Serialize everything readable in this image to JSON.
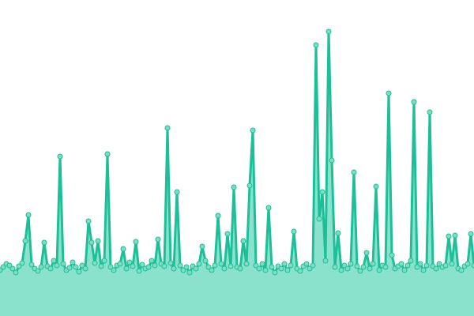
{
  "chart_data": {
    "type": "area",
    "values": [
      58,
      62,
      66,
      64,
      60,
      55,
      63,
      67,
      95,
      128,
      65,
      60,
      57,
      62,
      93,
      63,
      60,
      70,
      64,
      202,
      66,
      58,
      61,
      68,
      62,
      56,
      64,
      60,
      120,
      93,
      67,
      95,
      63,
      70,
      205,
      62,
      58,
      64,
      66,
      85,
      60,
      68,
      63,
      94,
      57,
      65,
      60,
      62,
      70,
      64,
      97,
      66,
      63,
      238,
      67,
      60,
      157,
      64,
      58,
      62,
      55,
      63,
      60,
      66,
      88,
      70,
      62,
      58,
      64,
      127,
      66,
      60,
      104,
      63,
      163,
      62,
      60,
      95,
      66,
      165,
      235,
      64,
      60,
      66,
      58,
      137,
      62,
      55,
      63,
      60,
      66,
      58,
      64,
      107,
      60,
      57,
      63,
      66,
      60,
      64,
      343,
      123,
      157,
      70,
      360,
      197,
      62,
      105,
      58,
      64,
      60,
      66,
      182,
      63,
      57,
      62,
      80,
      60,
      66,
      164,
      58,
      64,
      62,
      282,
      77,
      60,
      63,
      66,
      58,
      64,
      70,
      271,
      62,
      66,
      58,
      64,
      258,
      63,
      60,
      66,
      62,
      64,
      101,
      66,
      102,
      60,
      58,
      63,
      66,
      104,
      64
    ],
    "color": "#1dbf99",
    "fill": "#8ae2cd",
    "marker_fill": "#7fdcc3",
    "ylim": [
      0,
      400
    ]
  }
}
